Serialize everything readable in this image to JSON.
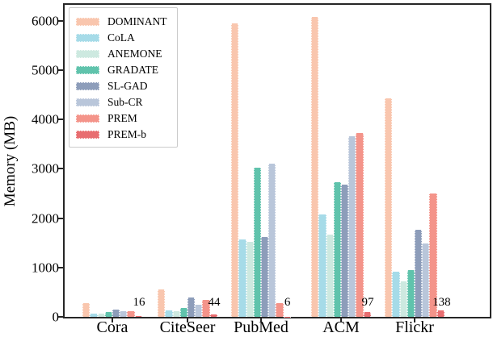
{
  "chart_data": {
    "type": "bar",
    "title": "",
    "xlabel": "",
    "ylabel": "Memory (MB)",
    "categories": [
      "Cora",
      "CiteSeer",
      "PubMed",
      "ACM",
      "Flickr"
    ],
    "series": [
      {
        "name": "DOMINANT",
        "color": "#F9C6AE",
        "values": [
          280,
          560,
          5950,
          6080,
          4420
        ]
      },
      {
        "name": "CoLA",
        "color": "#A6DBE8",
        "values": [
          65,
          135,
          1560,
          2080,
          910
        ]
      },
      {
        "name": "ANEMONE",
        "color": "#CDE9E0",
        "values": [
          60,
          115,
          1520,
          1670,
          720
        ]
      },
      {
        "name": "GRADATE",
        "color": "#60C3AC",
        "values": [
          95,
          180,
          3020,
          2720,
          940
        ]
      },
      {
        "name": "SL-GAD",
        "color": "#8D9DBA",
        "values": [
          155,
          390,
          1620,
          2680,
          1770
        ]
      },
      {
        "name": "Sub-CR",
        "color": "#B9C6DA",
        "values": [
          115,
          250,
          3100,
          3660,
          1490
        ]
      },
      {
        "name": "PREM",
        "color": "#F4948A",
        "values": [
          110,
          340,
          280,
          3720,
          2500
        ]
      },
      {
        "name": "PREM-b",
        "color": "#E86D70",
        "values": [
          16,
          44,
          6,
          97,
          138
        ]
      }
    ],
    "annotations": [
      "16",
      "44",
      "6",
      "97",
      "138"
    ],
    "yticks": [
      0,
      1000,
      2000,
      3000,
      4000,
      5000,
      6000
    ],
    "ylim": [
      0,
      6350
    ],
    "legend_position": "upper-left",
    "grid": false
  }
}
